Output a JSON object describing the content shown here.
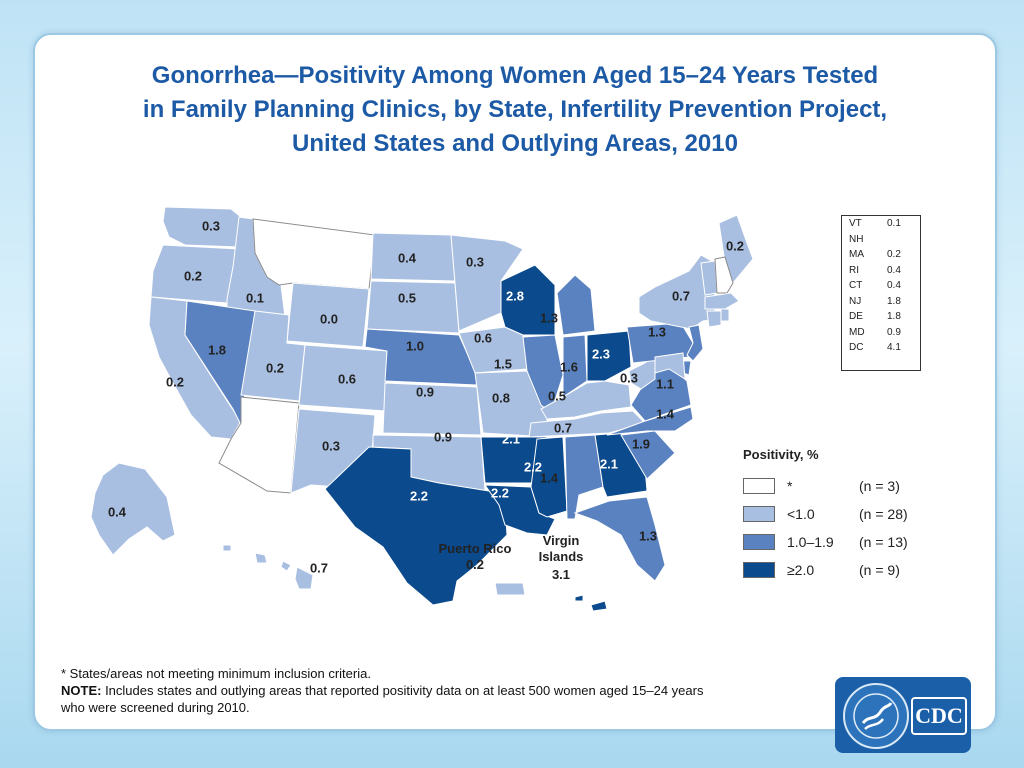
{
  "title_lines": [
    "Gonorrhea—Positivity Among Women Aged 15–24 Years Tested",
    "in Family Planning Clinics, by State, Infertility Prevention Project,",
    "United States and Outlying Areas, 2010"
  ],
  "colors": {
    "not_met": "#ffffff",
    "lt1": "#a9bfe1",
    "mid": "#5b82c0",
    "high": "#0b4a8c",
    "border": "#ffffff",
    "title": "#1d5aa6"
  },
  "states": [
    {
      "id": "WA",
      "value": "0.3",
      "category": "lt1"
    },
    {
      "id": "OR",
      "value": "0.2",
      "category": "lt1"
    },
    {
      "id": "CA",
      "value": "0.2",
      "category": "lt1"
    },
    {
      "id": "ID",
      "value": "0.1",
      "category": "lt1"
    },
    {
      "id": "NV",
      "value": "1.8",
      "category": "mid"
    },
    {
      "id": "MT",
      "value": "",
      "category": "not_met"
    },
    {
      "id": "WY",
      "value": "0.0",
      "category": "lt1"
    },
    {
      "id": "UT",
      "value": "0.2",
      "category": "lt1"
    },
    {
      "id": "AZ",
      "value": "",
      "category": "not_met"
    },
    {
      "id": "CO",
      "value": "0.6",
      "category": "lt1"
    },
    {
      "id": "NM",
      "value": "0.3",
      "category": "lt1"
    },
    {
      "id": "ND",
      "value": "0.4",
      "category": "lt1"
    },
    {
      "id": "SD",
      "value": "0.5",
      "category": "lt1"
    },
    {
      "id": "NE",
      "value": "1.0",
      "category": "mid"
    },
    {
      "id": "KS",
      "value": "0.9",
      "category": "lt1"
    },
    {
      "id": "OK",
      "value": "0.9",
      "category": "lt1"
    },
    {
      "id": "TX",
      "value": "2.2",
      "category": "high"
    },
    {
      "id": "MN",
      "value": "0.3",
      "category": "lt1"
    },
    {
      "id": "IA",
      "value": "0.6",
      "category": "lt1"
    },
    {
      "id": "MO",
      "value": "0.8",
      "category": "lt1"
    },
    {
      "id": "AR",
      "value": "2.1",
      "category": "high"
    },
    {
      "id": "LA",
      "value": "2.2",
      "category": "high"
    },
    {
      "id": "WI",
      "value": "2.8",
      "category": "high"
    },
    {
      "id": "IL",
      "value": "1.5",
      "category": "mid"
    },
    {
      "id": "MS",
      "value": "2.2",
      "category": "high"
    },
    {
      "id": "MI",
      "value": "1.3",
      "category": "mid"
    },
    {
      "id": "IN",
      "value": "1.6",
      "category": "mid"
    },
    {
      "id": "OH",
      "value": "2.3",
      "category": "high"
    },
    {
      "id": "KY",
      "value": "0.5",
      "category": "lt1"
    },
    {
      "id": "TN",
      "value": "0.7",
      "category": "lt1"
    },
    {
      "id": "AL",
      "value": "1.4",
      "category": "mid"
    },
    {
      "id": "GA",
      "value": "2.1",
      "category": "high"
    },
    {
      "id": "FL",
      "value": "1.3",
      "category": "mid"
    },
    {
      "id": "SC",
      "value": "1.9",
      "category": "mid"
    },
    {
      "id": "NC",
      "value": "1.4",
      "category": "mid"
    },
    {
      "id": "VA",
      "value": "1.1",
      "category": "mid"
    },
    {
      "id": "WV",
      "value": "0.3",
      "category": "lt1"
    },
    {
      "id": "PA",
      "value": "1.3",
      "category": "mid"
    },
    {
      "id": "NY",
      "value": "0.7",
      "category": "lt1"
    },
    {
      "id": "ME",
      "value": "0.2",
      "category": "lt1"
    },
    {
      "id": "VT",
      "value": "",
      "category": "lt1"
    },
    {
      "id": "NH",
      "value": "",
      "category": "not_met"
    },
    {
      "id": "MA",
      "value": "",
      "category": "lt1"
    },
    {
      "id": "CT",
      "value": "",
      "category": "lt1"
    },
    {
      "id": "RI",
      "value": "",
      "category": "lt1"
    },
    {
      "id": "NJ",
      "value": "",
      "category": "mid"
    },
    {
      "id": "DE",
      "value": "",
      "category": "mid"
    },
    {
      "id": "MD",
      "value": "",
      "category": "lt1"
    },
    {
      "id": "AK",
      "value": "0.4",
      "category": "lt1"
    },
    {
      "id": "HI",
      "value": "0.7",
      "category": "lt1"
    },
    {
      "id": "PR",
      "value": "0.2",
      "category": "lt1"
    },
    {
      "id": "VI",
      "value": "3.1",
      "category": "high"
    }
  ],
  "outlying_labels": {
    "pr_name": "Puerto Rico",
    "pr_value": "0.2",
    "vi_name_1": "Virgin",
    "vi_name_2": "Islands",
    "vi_value": "3.1"
  },
  "ne_table": [
    {
      "state": "VT",
      "value": "0.1"
    },
    {
      "state": "NH",
      "value": ""
    },
    {
      "state": "MA",
      "value": "0.2"
    },
    {
      "state": "RI",
      "value": "0.4"
    },
    {
      "state": "CT",
      "value": "0.4"
    },
    {
      "state": "NJ",
      "value": "1.8"
    },
    {
      "state": "DE",
      "value": "1.8"
    },
    {
      "state": "MD",
      "value": "0.9"
    },
    {
      "state": "DC",
      "value": "4.1"
    }
  ],
  "legend": {
    "title": "Positivity, %",
    "items": [
      {
        "category": "not_met",
        "label": "*",
        "count": "(n = 3)"
      },
      {
        "category": "lt1",
        "label": "<1.0",
        "count": "(n = 28)"
      },
      {
        "category": "mid",
        "label": "1.0–1.9",
        "count": "(n = 13)"
      },
      {
        "category": "high",
        "label": "≥2.0",
        "count": "(n = 9)"
      }
    ]
  },
  "footer": {
    "line1": "* States/areas not meeting minimum inclusion criteria.",
    "note_label": "NOTE:",
    "note_text": " Includes states and outlying areas that reported positivity data on at least 500 women aged 15–24 years",
    "line3": "who were screened during 2010."
  },
  "logo": {
    "text": "CDC"
  }
}
